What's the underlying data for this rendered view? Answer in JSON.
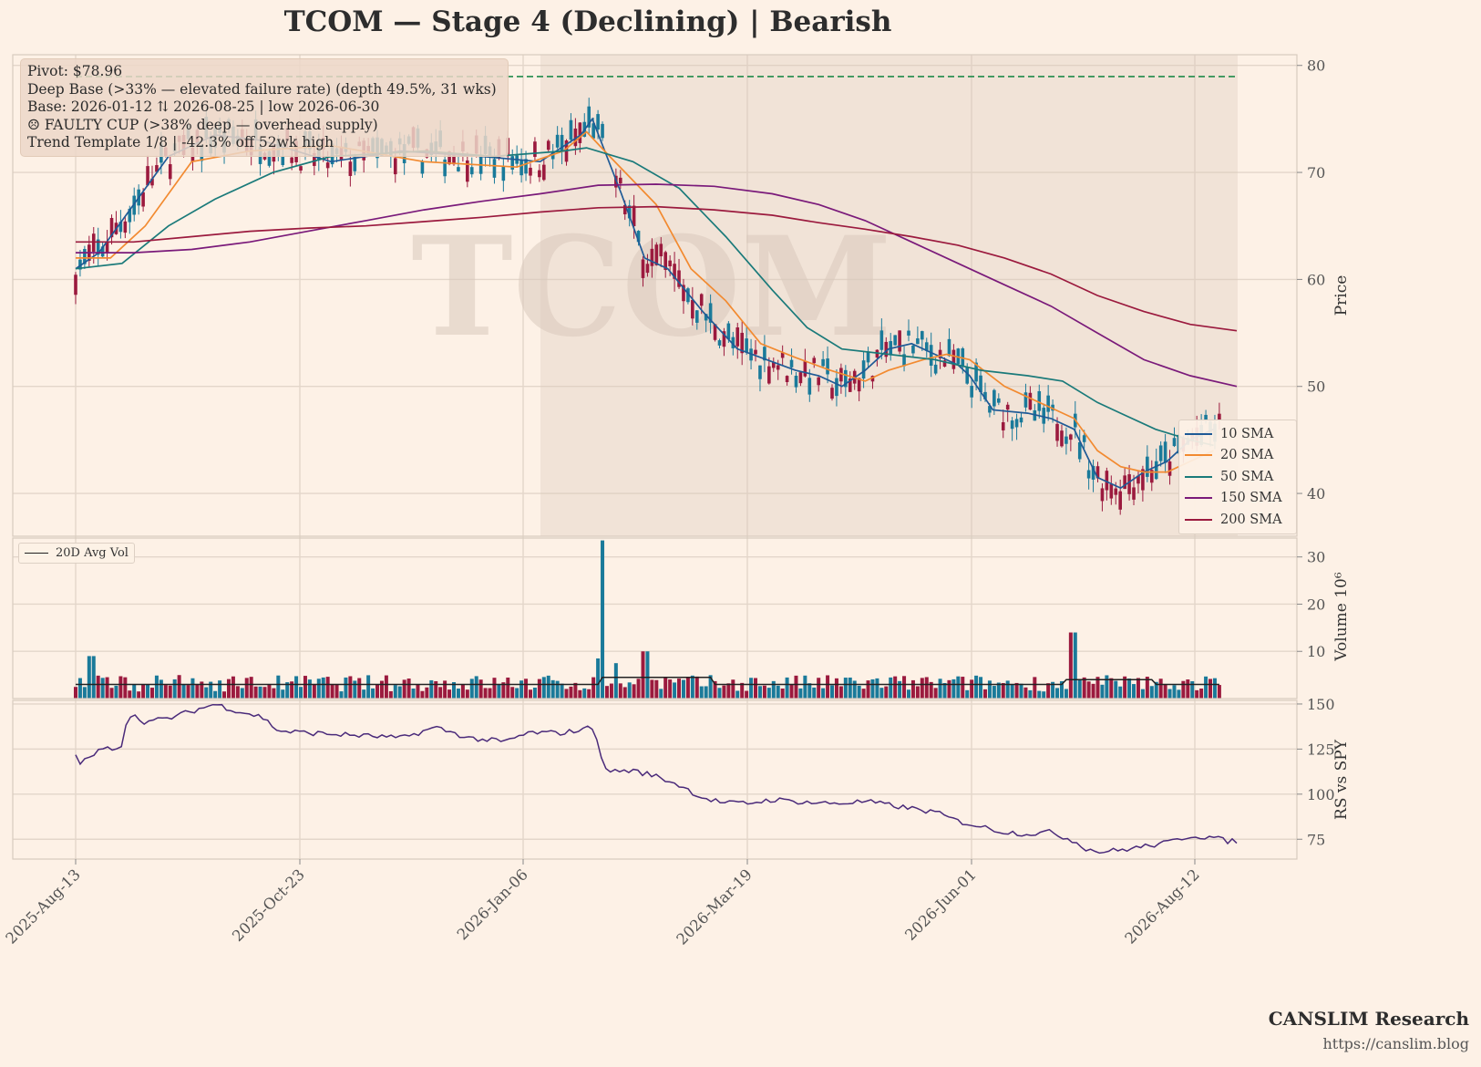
{
  "title": "TCOM  —  Stage 4 (Declining)  |  Bearish",
  "info": {
    "pivot": "Pivot: $78.96",
    "deep_base": "Deep Base (>33% — elevated failure rate)  (depth 49.5%, 31 wks)",
    "base": "Base: 2026-01-12 ⇅ 2026-08-25  |  low 2026-06-30",
    "faulty_cup": "☹ FAULTY CUP (>38% deep — overhead supply)",
    "trend": "Trend Template 1/8  |  -42.3% off 52wk high"
  },
  "watermark": "TCOM",
  "brand": "CANSLIM Research",
  "url": "https://canslim.blog",
  "chart_data": {
    "type": "line",
    "x_tick_labels": [
      "2025-Aug-13",
      "2025-Oct-23",
      "2026-Jan-06",
      "2026-Mar-19",
      "2026-Jun-01",
      "2026-Aug-12"
    ],
    "price_panel": {
      "ylabel": "Price",
      "yticks": [
        40,
        50,
        60,
        70,
        80
      ],
      "ylim": [
        36,
        81
      ],
      "pivot": 78.96,
      "base_shading_start": "2026-01-12",
      "series": [
        {
          "name": "10 SMA",
          "color": "#1f5a96",
          "points": [
            [
              0,
              61
            ],
            [
              0.02,
              62.5
            ],
            [
              0.05,
              67
            ],
            [
              0.08,
              71.5
            ],
            [
              0.12,
              73.5
            ],
            [
              0.16,
              73
            ],
            [
              0.22,
              71
            ],
            [
              0.28,
              72
            ],
            [
              0.35,
              71.5
            ],
            [
              0.4,
              71
            ],
            [
              0.435,
              73.5
            ],
            [
              0.445,
              75
            ],
            [
              0.47,
              68
            ],
            [
              0.49,
              62
            ],
            [
              0.51,
              61
            ],
            [
              0.54,
              57
            ],
            [
              0.57,
              53.5
            ],
            [
              0.6,
              52.3
            ],
            [
              0.62,
              51.5
            ],
            [
              0.64,
              51
            ],
            [
              0.66,
              50
            ],
            [
              0.68,
              51.5
            ],
            [
              0.7,
              53.5
            ],
            [
              0.72,
              54
            ],
            [
              0.74,
              53
            ],
            [
              0.76,
              52
            ],
            [
              0.77,
              51
            ],
            [
              0.79,
              47.8
            ],
            [
              0.82,
              47.5
            ],
            [
              0.84,
              47
            ],
            [
              0.86,
              46
            ],
            [
              0.88,
              41.5
            ],
            [
              0.9,
              40.5
            ],
            [
              0.92,
              42
            ],
            [
              0.94,
              43
            ],
            [
              0.96,
              45
            ],
            [
              0.98,
              46
            ]
          ]
        },
        {
          "name": "20 SMA",
          "color": "#f28a30",
          "points": [
            [
              0,
              62
            ],
            [
              0.03,
              62
            ],
            [
              0.06,
              65
            ],
            [
              0.1,
              71
            ],
            [
              0.15,
              72
            ],
            [
              0.22,
              72.5
            ],
            [
              0.3,
              71
            ],
            [
              0.38,
              70.5
            ],
            [
              0.42,
              72
            ],
            [
              0.44,
              73.8
            ],
            [
              0.46,
              71.5
            ],
            [
              0.5,
              67
            ],
            [
              0.53,
              61
            ],
            [
              0.56,
              58
            ],
            [
              0.59,
              54
            ],
            [
              0.62,
              52.7
            ],
            [
              0.65,
              51.5
            ],
            [
              0.68,
              50.5
            ],
            [
              0.7,
              51.5
            ],
            [
              0.73,
              52.5
            ],
            [
              0.75,
              53
            ],
            [
              0.77,
              52.5
            ],
            [
              0.8,
              50
            ],
            [
              0.83,
              48.5
            ],
            [
              0.86,
              47
            ],
            [
              0.88,
              44
            ],
            [
              0.9,
              42.5
            ],
            [
              0.92,
              42
            ],
            [
              0.94,
              42
            ],
            [
              0.96,
              43
            ],
            [
              0.98,
              44
            ]
          ]
        },
        {
          "name": "50 SMA",
          "color": "#1a7a7a",
          "points": [
            [
              0,
              61
            ],
            [
              0.04,
              61.5
            ],
            [
              0.08,
              65
            ],
            [
              0.12,
              67.5
            ],
            [
              0.17,
              70
            ],
            [
              0.22,
              71.5
            ],
            [
              0.3,
              72
            ],
            [
              0.36,
              71.5
            ],
            [
              0.42,
              72
            ],
            [
              0.44,
              72.3
            ],
            [
              0.48,
              71
            ],
            [
              0.52,
              68.5
            ],
            [
              0.56,
              64
            ],
            [
              0.6,
              59
            ],
            [
              0.63,
              55.5
            ],
            [
              0.66,
              53.5
            ],
            [
              0.7,
              53
            ],
            [
              0.74,
              52.5
            ],
            [
              0.78,
              51.5
            ],
            [
              0.82,
              51
            ],
            [
              0.85,
              50.5
            ],
            [
              0.88,
              48.5
            ],
            [
              0.9,
              47.5
            ],
            [
              0.93,
              46
            ],
            [
              0.96,
              45
            ],
            [
              0.98,
              44.5
            ]
          ]
        },
        {
          "name": "150 SMA",
          "color": "#7a1a7a",
          "points": [
            [
              0,
              62.5
            ],
            [
              0.05,
              62.5
            ],
            [
              0.1,
              62.8
            ],
            [
              0.15,
              63.5
            ],
            [
              0.2,
              64.5
            ],
            [
              0.25,
              65.5
            ],
            [
              0.3,
              66.5
            ],
            [
              0.35,
              67.3
            ],
            [
              0.4,
              68
            ],
            [
              0.45,
              68.8
            ],
            [
              0.5,
              68.9
            ],
            [
              0.55,
              68.7
            ],
            [
              0.6,
              68
            ],
            [
              0.64,
              67
            ],
            [
              0.68,
              65.5
            ],
            [
              0.72,
              63.5
            ],
            [
              0.76,
              61.5
            ],
            [
              0.8,
              59.5
            ],
            [
              0.84,
              57.5
            ],
            [
              0.88,
              55
            ],
            [
              0.92,
              52.5
            ],
            [
              0.96,
              51
            ],
            [
              1.0,
              50
            ]
          ]
        },
        {
          "name": "200 SMA",
          "color": "#9b1a3e",
          "points": [
            [
              0,
              63.5
            ],
            [
              0.05,
              63.5
            ],
            [
              0.1,
              64
            ],
            [
              0.15,
              64.5
            ],
            [
              0.2,
              64.8
            ],
            [
              0.25,
              65
            ],
            [
              0.3,
              65.4
            ],
            [
              0.35,
              65.8
            ],
            [
              0.4,
              66.3
            ],
            [
              0.45,
              66.7
            ],
            [
              0.5,
              66.8
            ],
            [
              0.55,
              66.5
            ],
            [
              0.6,
              66
            ],
            [
              0.64,
              65.3
            ],
            [
              0.68,
              64.7
            ],
            [
              0.72,
              64
            ],
            [
              0.76,
              63.2
            ],
            [
              0.8,
              62
            ],
            [
              0.84,
              60.5
            ],
            [
              0.88,
              58.5
            ],
            [
              0.92,
              57
            ],
            [
              0.96,
              55.8
            ],
            [
              1.0,
              55.2
            ]
          ]
        }
      ]
    },
    "volume_panel": {
      "ylabel": "Volume  10⁶",
      "yticks": [
        10,
        20,
        30
      ],
      "ylim": [
        0,
        34
      ],
      "series": [
        {
          "name": "20D Avg Vol",
          "color": "#222222"
        }
      ],
      "spike": {
        "x": 0.452,
        "value": 33.5
      }
    },
    "rs_panel": {
      "ylabel": "RS vs SPY",
      "yticks": [
        75,
        100,
        125,
        150
      ],
      "ylim": [
        64,
        152
      ],
      "color": "#4a2a7a",
      "points": [
        [
          0,
          121
        ],
        [
          0.005,
          117
        ],
        [
          0.02,
          124
        ],
        [
          0.04,
          127
        ],
        [
          0.045,
          145
        ],
        [
          0.06,
          140
        ],
        [
          0.08,
          142
        ],
        [
          0.1,
          146
        ],
        [
          0.12,
          150
        ],
        [
          0.14,
          146
        ],
        [
          0.16,
          143
        ],
        [
          0.175,
          135
        ],
        [
          0.2,
          134
        ],
        [
          0.23,
          133
        ],
        [
          0.26,
          132
        ],
        [
          0.28,
          131
        ],
        [
          0.31,
          137
        ],
        [
          0.34,
          131
        ],
        [
          0.37,
          129
        ],
        [
          0.39,
          134
        ],
        [
          0.42,
          134
        ],
        [
          0.445,
          137
        ],
        [
          0.45,
          130
        ],
        [
          0.455,
          113
        ],
        [
          0.48,
          113
        ],
        [
          0.5,
          110
        ],
        [
          0.52,
          105
        ],
        [
          0.54,
          98
        ],
        [
          0.56,
          95
        ],
        [
          0.58,
          95
        ],
        [
          0.6,
          97
        ],
        [
          0.62,
          96
        ],
        [
          0.64,
          95
        ],
        [
          0.66,
          95
        ],
        [
          0.68,
          96
        ],
        [
          0.7,
          94
        ],
        [
          0.72,
          92
        ],
        [
          0.74,
          90
        ],
        [
          0.76,
          85
        ],
        [
          0.78,
          82
        ],
        [
          0.8,
          79
        ],
        [
          0.82,
          78
        ],
        [
          0.84,
          79
        ],
        [
          0.86,
          74
        ],
        [
          0.87,
          70
        ],
        [
          0.88,
          68
        ],
        [
          0.9,
          69
        ],
        [
          0.92,
          71
        ],
        [
          0.94,
          73
        ],
        [
          0.96,
          77
        ],
        [
          0.98,
          76
        ],
        [
          0.99,
          74
        ],
        [
          1.0,
          74
        ]
      ]
    }
  }
}
